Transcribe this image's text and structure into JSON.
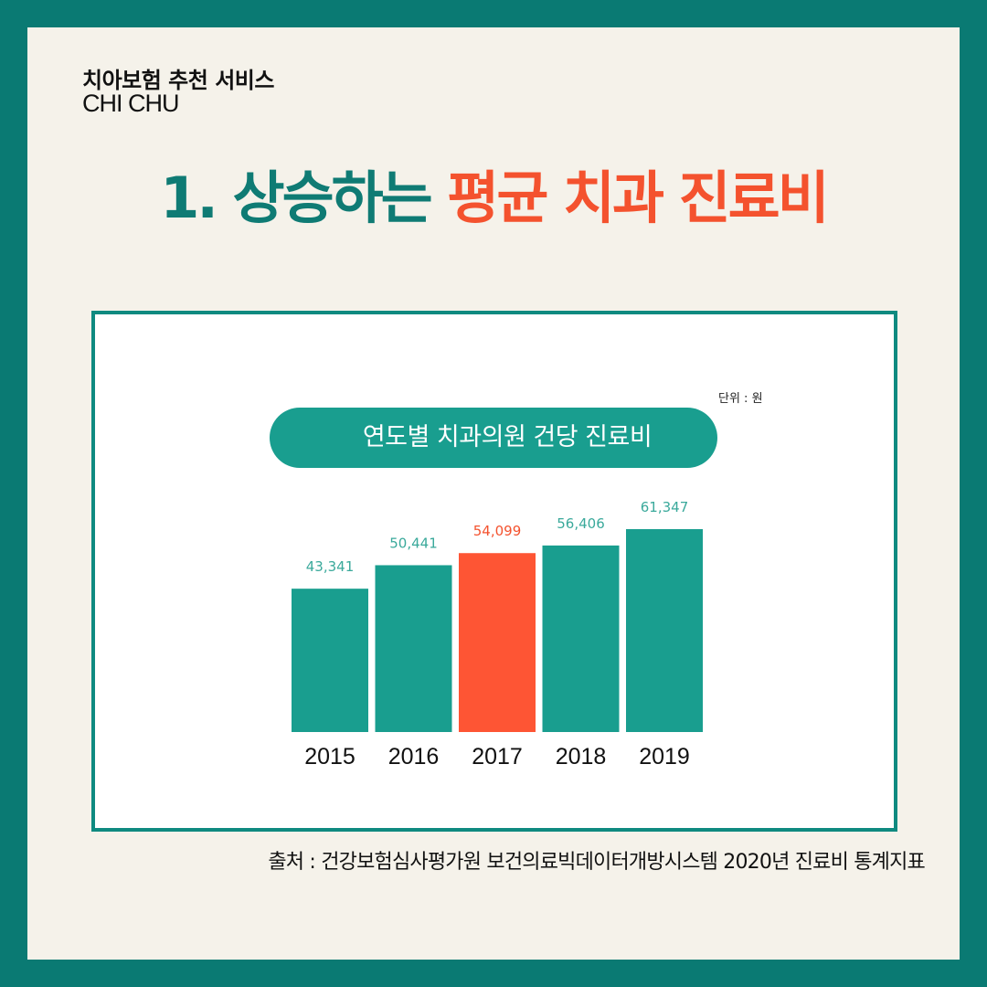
{
  "brand": {
    "korean": "치아보험 추천 서비스",
    "english": "CHI CHU"
  },
  "headline": {
    "prefix": "1. 상승하는",
    "highlight": "평균 치과 진료비"
  },
  "chart_data": {
    "type": "bar",
    "title": "연도별 치과의원 건당 진료비",
    "unit_label": "단위 : 원",
    "categories": [
      "2015",
      "2016",
      "2017",
      "2018",
      "2019"
    ],
    "values": [
      43341,
      50441,
      54099,
      56406,
      61347
    ],
    "value_labels": [
      "43,341",
      "50,441",
      "54,099",
      "56,406",
      "61,347"
    ],
    "highlight_index": 2,
    "ylim": [
      0,
      61347
    ],
    "grid": false,
    "colors": {
      "bar": "#199e8f",
      "highlight": "#fe5534",
      "label": "#3aa99b",
      "highlight_label": "#f4522e",
      "axis_text": "#111111"
    }
  },
  "source": "출처 : 건강보험심사평가원 보건의료빅데이터개방시스템 2020년 진료비 통계지표"
}
